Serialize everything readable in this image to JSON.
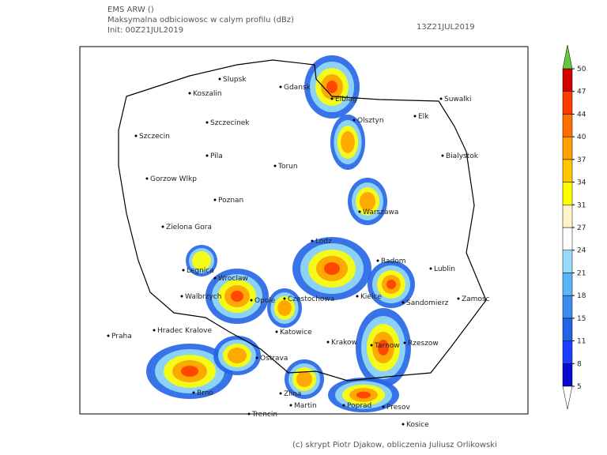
{
  "header": {
    "model": "EMS ARW ()",
    "title": "Maksymalna odbiciowosc w calym profilu (dBz)",
    "init": "Init: 00Z21JUL2019",
    "valid": "13Z21JUL2019"
  },
  "colorbar": {
    "ticks": [
      5,
      8,
      11,
      15,
      18,
      21,
      24,
      27,
      31,
      34,
      37,
      40,
      44,
      47,
      50
    ],
    "colors": [
      "#0a0ad2",
      "#1e3cff",
      "#2364e6",
      "#3c8cf0",
      "#5ab4f5",
      "#96dcfa",
      "#ffffff",
      "#fff5c8",
      "#ffff00",
      "#ffc800",
      "#ffa000",
      "#ff6e00",
      "#ff3c00",
      "#d20000"
    ],
    "under_color": "#ffffff",
    "over_color": "#64c83c"
  },
  "cities": [
    "Slupsk",
    "Koszalin",
    "Gdansk",
    "Elblag",
    "Olsztyn",
    "Suwalki",
    "Elk",
    "Szczecinek",
    "Szczecin",
    "Bialystok",
    "Pila",
    "Torun",
    "Gorzow Wlkp",
    "Poznan",
    "Warszawa",
    "Zielona Gora",
    "Lodz",
    "Radom",
    "Lublin",
    "Legnica",
    "Wroclaw",
    "Opole",
    "Walbrzych",
    "Czestochowa",
    "Kielce",
    "Sandomierz",
    "Zamosc",
    "Hradec Kralove",
    "Katowice",
    "Praha",
    "Krakow",
    "Tarnow",
    "Rzeszow",
    "Ostrava",
    "Brno",
    "Zlina",
    "Martin",
    "Poprad",
    "Presov",
    "Trencin",
    "Kosice"
  ],
  "footer": "(c) skrypt Piotr Djakow, obliczenia Juliusz Orlikowski"
}
